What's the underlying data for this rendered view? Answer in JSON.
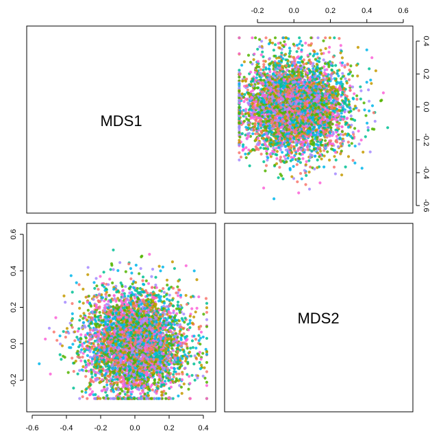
{
  "chart_data": {
    "type": "scatter",
    "subtype": "pairs-scatterplot-matrix",
    "variables": [
      "MDS1",
      "MDS2"
    ],
    "point_count_estimate": 5000,
    "point_size": "small",
    "grid": false,
    "legend": "none",
    "colors": [
      "#F8766D",
      "#C49A00",
      "#53B400",
      "#00C094",
      "#00B6EB",
      "#A58AFF",
      "#FB61D7"
    ],
    "panels": [
      {
        "id": "mds1-vs-mds2",
        "position": "top-right",
        "x_var": "MDS2",
        "y_var": "MDS1",
        "x_axis_side": "top",
        "y_axis_side": "right",
        "x_ticks": [
          "-0.2",
          "0.0",
          "0.2",
          "0.4",
          "0.6"
        ],
        "y_ticks": [
          "-0.6",
          "-0.4",
          "-0.2",
          "0.0",
          "0.2",
          "0.4"
        ],
        "xlim": [
          -0.3,
          0.66
        ],
        "ylim": [
          -0.62,
          0.46
        ],
        "cloud": {
          "center": [
            0.0,
            0.0
          ],
          "sd": [
            0.15,
            0.15
          ],
          "range_x": [
            -0.3,
            0.62
          ],
          "range_y": [
            -0.6,
            0.42
          ]
        }
      },
      {
        "id": "mds2-vs-mds1",
        "position": "bottom-left",
        "x_var": "MDS1",
        "y_var": "MDS2",
        "x_axis_side": "bottom",
        "y_axis_side": "left",
        "x_ticks": [
          "-0.6",
          "-0.4",
          "-0.2",
          "0.0",
          "0.2",
          "0.4"
        ],
        "y_ticks": [
          "-0.2",
          "0.0",
          "0.2",
          "0.4",
          "0.6"
        ],
        "xlim": [
          -0.62,
          0.46
        ],
        "ylim": [
          -0.35,
          0.66
        ],
        "cloud": {
          "center": [
            0.0,
            0.0
          ],
          "sd": [
            0.15,
            0.15
          ],
          "range_x": [
            -0.6,
            0.42
          ],
          "range_y": [
            -0.3,
            0.62
          ]
        }
      }
    ]
  }
}
